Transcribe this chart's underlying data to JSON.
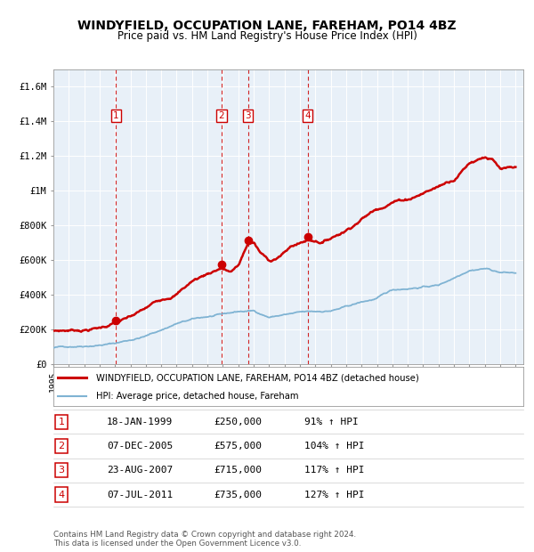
{
  "title": "WINDYFIELD, OCCUPATION LANE, FAREHAM, PO14 4BZ",
  "subtitle": "Price paid vs. HM Land Registry's House Price Index (HPI)",
  "ylim": [
    0,
    1700000
  ],
  "yticks": [
    0,
    200000,
    400000,
    600000,
    800000,
    1000000,
    1200000,
    1400000,
    1600000
  ],
  "ytick_labels": [
    "£0",
    "£200K",
    "£400K",
    "£600K",
    "£800K",
    "£1M",
    "£1.2M",
    "£1.4M",
    "£1.6M"
  ],
  "plot_bg_color": "#e8f0f8",
  "red_color": "#cc0000",
  "blue_color": "#7fb3d3",
  "transactions": [
    {
      "label": "1",
      "date": 1999.05,
      "price": 250000,
      "date_str": "18-JAN-1999",
      "pct_str": "91% ↑ HPI"
    },
    {
      "label": "2",
      "date": 2005.92,
      "price": 575000,
      "date_str": "07-DEC-2005",
      "pct_str": "104% ↑ HPI"
    },
    {
      "label": "3",
      "date": 2007.64,
      "price": 715000,
      "date_str": "23-AUG-2007",
      "pct_str": "117% ↑ HPI"
    },
    {
      "label": "4",
      "date": 2011.51,
      "price": 735000,
      "date_str": "07-JUL-2011",
      "pct_str": "127% ↑ HPI"
    }
  ],
  "legend_red_label": "WINDYFIELD, OCCUPATION LANE, FAREHAM, PO14 4BZ (detached house)",
  "legend_blue_label": "HPI: Average price, detached house, Fareham",
  "table_rows": [
    [
      "1",
      "18-JAN-1999",
      "£250,000",
      "91% ↑ HPI"
    ],
    [
      "2",
      "07-DEC-2005",
      "£575,000",
      "104% ↑ HPI"
    ],
    [
      "3",
      "23-AUG-2007",
      "£715,000",
      "117% ↑ HPI"
    ],
    [
      "4",
      "07-JUL-2011",
      "£735,000",
      "127% ↑ HPI"
    ]
  ],
  "footer": "Contains HM Land Registry data © Crown copyright and database right 2024.\nThis data is licensed under the Open Government Licence v3.0."
}
